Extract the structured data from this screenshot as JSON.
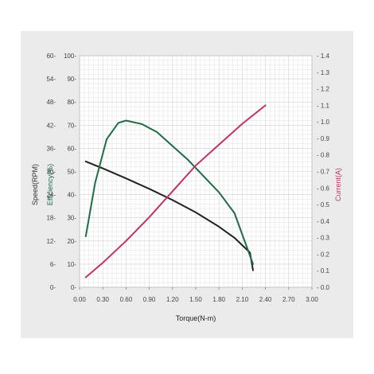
{
  "chart_data": {
    "type": "line",
    "title": "",
    "xlabel": "Torque(N-m)",
    "x_range": [
      0,
      3.0
    ],
    "x_ticks": [
      "0.00",
      "0.30",
      "0.60",
      "0.90",
      "1.20",
      "1.50",
      "1.80",
      "2.10",
      "2.40",
      "2.70",
      "3.00"
    ],
    "y_axes": {
      "speed": {
        "label": "Speed(RPM)",
        "range": [
          0,
          60
        ],
        "ticks": [
          "0",
          "6",
          "12",
          "18",
          "24",
          "30",
          "36",
          "42",
          "48",
          "54",
          "60"
        ],
        "color": "#333333"
      },
      "efficiency": {
        "label": "Efficiency(%)",
        "range": [
          0,
          100
        ],
        "ticks": [
          "0",
          "10",
          "20",
          "30",
          "40",
          "50",
          "60",
          "70",
          "80",
          "90",
          "100"
        ],
        "color": "#1f6b46"
      },
      "current": {
        "label": "Current(A)",
        "range": [
          0,
          1.4
        ],
        "ticks": [
          "0.0",
          "0.1",
          "0.2",
          "0.3",
          "0.4",
          "0.5",
          "0.6",
          "0.7",
          "0.8",
          "0.9",
          "1.0",
          "1.1",
          "1.2",
          "1.3",
          "1.4"
        ],
        "color": "#c0306a"
      }
    },
    "grid": true,
    "series": [
      {
        "axis": "speed",
        "color": "#222222",
        "points": [
          [
            0.08,
            32.6
          ],
          [
            0.3,
            30.8
          ],
          [
            0.6,
            28.2
          ],
          [
            0.9,
            25.5
          ],
          [
            1.2,
            22.6
          ],
          [
            1.5,
            19.4
          ],
          [
            1.8,
            15.7
          ],
          [
            2.0,
            12.8
          ],
          [
            2.2,
            9.0
          ],
          [
            2.24,
            4.4
          ]
        ]
      },
      {
        "axis": "efficiency",
        "color": "#1f6b46",
        "points": [
          [
            0.08,
            22
          ],
          [
            0.2,
            45
          ],
          [
            0.35,
            64
          ],
          [
            0.5,
            71
          ],
          [
            0.6,
            72
          ],
          [
            0.8,
            70.5
          ],
          [
            1.0,
            67
          ],
          [
            1.2,
            61
          ],
          [
            1.4,
            55
          ],
          [
            1.6,
            48
          ],
          [
            1.8,
            41
          ],
          [
            2.0,
            32
          ],
          [
            2.24,
            10
          ]
        ]
      },
      {
        "axis": "current",
        "color": "#c0306a",
        "points": [
          [
            0.08,
            0.06
          ],
          [
            0.3,
            0.148
          ],
          [
            0.6,
            0.28
          ],
          [
            0.9,
            0.424
          ],
          [
            1.2,
            0.58
          ],
          [
            1.5,
            0.736
          ],
          [
            1.8,
            0.862
          ],
          [
            2.1,
            0.988
          ],
          [
            2.4,
            1.1
          ]
        ]
      }
    ]
  }
}
